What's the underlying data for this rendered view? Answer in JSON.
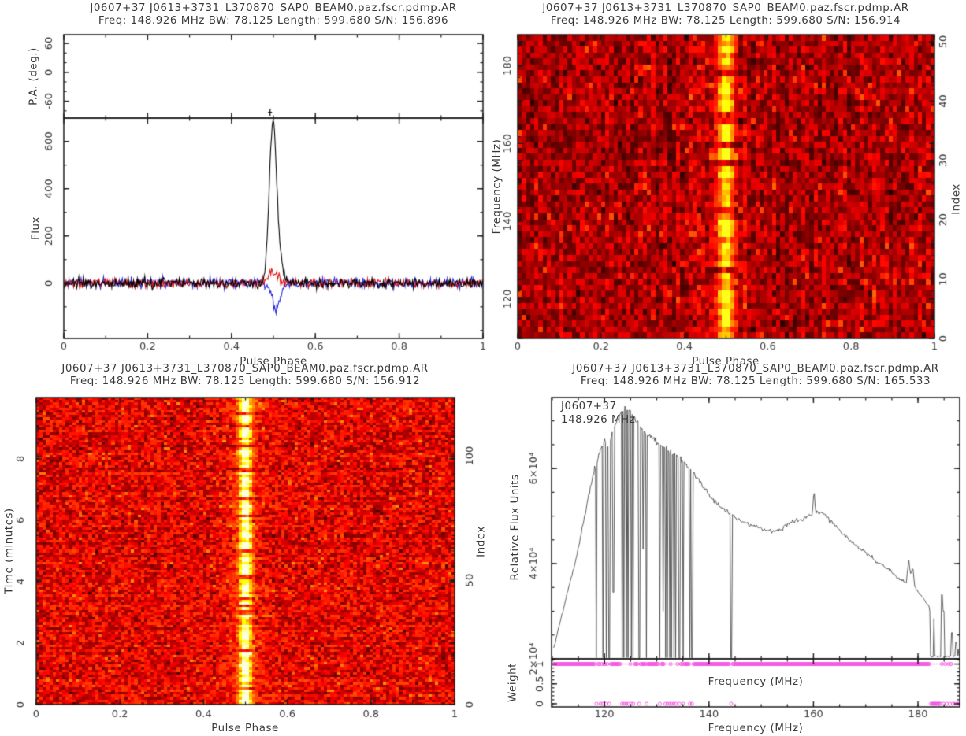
{
  "colors": {
    "background": "#ffffff",
    "frame": "#1c1c1c",
    "text": "#3a3a3a",
    "trace_total": "#000000",
    "trace_linear": "#dd1414",
    "trace_circular": "#2525dd",
    "spectrum_line": "#4a4a4a",
    "weight_markers": "#f44ae0",
    "heat_low": "#1a0000",
    "heat_mid": "#a81e00",
    "heat_high": "#ffd24a"
  },
  "panels": {
    "profile": {
      "title1": "J0607+37 J0613+3731_L370870_SAP0_BEAM0.paz.fscr.pdmp.AR",
      "title2": "Freq: 148.926 MHz BW: 78.125 Length: 599.680 S/N: 156.896",
      "pa_label": "P.A. (deg.)",
      "flux_label": "Flux",
      "xlabel": "Pulse Phase"
    },
    "freq_phase": {
      "title1": "J0607+37 J0613+3731_L370870_SAP0_BEAM0.paz.fscr.pdmp.AR",
      "title2": "Freq: 148.926 MHz BW: 78.125 Length: 599.680 S/N: 156.914",
      "ylabel": "Frequency (MHz)",
      "right_label": "Index",
      "xlabel": "Pulse Phase"
    },
    "time_phase": {
      "title1": "J0607+37 J0613+3731_L370870_SAP0_BEAM0.paz.fscr.pdmp.AR",
      "title2": "Freq: 148.926 MHz BW: 78.125 Length: 599.680 S/N: 156.912",
      "ylabel": "Time (minutes)",
      "right_label": "Index",
      "xlabel": "Pulse Phase"
    },
    "spectrum": {
      "title1": "J0607+37 J0613+3731_L370870_SAP0_BEAM0.paz.fscr.pdmp.AR",
      "title2": "Freq: 148.926 MHz BW: 78.125 Length: 599.680 S/N: 165.533",
      "ylabel": "Relative Flux Units",
      "weight_label": "Weight",
      "xlabel": "Frequency (MHz)",
      "xlabel_inner": "Frequency (MHz)",
      "annotation1": "J0607+37",
      "annotation2": "148.926 MHz"
    }
  },
  "chart_data": [
    {
      "type": "line",
      "panel": "pulse-profile",
      "xlabel": "Pulse Phase",
      "xlim": [
        0,
        1
      ],
      "x_ticks": {
        "values": [
          0,
          0.2,
          0.4,
          0.6,
          0.8,
          1
        ],
        "labels": [
          "0",
          "0.2",
          "0.4",
          "0.6",
          "0.8",
          "1"
        ],
        "minor_step": 0.1
      },
      "pa_axis": {
        "label": "P.A. (deg.)",
        "ylim": [
          -95,
          78
        ],
        "ticks": {
          "values": [
            -60,
            0,
            60
          ],
          "labels": [
            "-60",
            "0",
            "60"
          ],
          "minor_step": 20
        },
        "point": {
          "phase": 0.492,
          "pa": -83,
          "err": 7
        }
      },
      "flux_axis": {
        "label": "Flux",
        "ylim": [
          -234,
          699
        ],
        "ticks": {
          "values": [
            0,
            200,
            400,
            600
          ],
          "labels": [
            "0",
            "200",
            "400",
            "600"
          ],
          "minor_step": 100
        }
      },
      "n_bins": 560,
      "peak_phase": 0.5,
      "peak_flux": 640,
      "series": [
        {
          "name": "total-intensity",
          "color": "#000000",
          "noise_sigma": 11,
          "components": [
            {
              "phase": 0.4985,
              "amplitude": 640,
              "sigma": 0.0085
            },
            {
              "phase": 0.512,
              "amplitude": 90,
              "sigma": 0.012
            }
          ]
        },
        {
          "name": "linear-polarization",
          "color": "#dd1414",
          "noise_sigma": 9,
          "components": [
            {
              "phase": 0.5,
              "amplitude": 52,
              "sigma": 0.011
            }
          ]
        },
        {
          "name": "circular-polarization",
          "color": "#2525dd",
          "noise_sigma": 10,
          "components": [
            {
              "phase": 0.506,
              "amplitude": -112,
              "sigma": 0.0085
            }
          ]
        }
      ]
    },
    {
      "type": "heatmap",
      "panel": "phase-vs-frequency",
      "xlim": [
        0,
        1
      ],
      "ylim": [
        109.86,
        187.99
      ],
      "x_ticks": {
        "values": [
          0,
          0.2,
          0.4,
          0.6,
          0.8,
          1
        ],
        "labels": [
          "0",
          "0.2",
          "0.4",
          "0.6",
          "0.8",
          "1"
        ],
        "minor_step": 0.1
      },
      "y_ticks": {
        "values": [
          120,
          140,
          160,
          180
        ],
        "labels": [
          "120",
          "140",
          "160",
          "180"
        ],
        "minor_step": 5
      },
      "index_axis": {
        "label": "Index",
        "lim": [
          0,
          51.2
        ],
        "ticks": {
          "values": [
            0,
            10,
            20,
            30,
            40,
            50
          ],
          "labels": [
            "0",
            "10",
            "20",
            "30",
            "40",
            "50"
          ],
          "minor_step": 2
        }
      },
      "rows": 51,
      "cols": 100,
      "base_level": [
        0.11,
        0.31
      ],
      "stripe": {
        "phase": 0.5,
        "sigma_cells": 1.15,
        "halo_sigma": 4.0,
        "amp_range": [
          0.3,
          0.78
        ],
        "cap": 0.86
      },
      "seed": 11
    },
    {
      "type": "heatmap",
      "panel": "phase-vs-time",
      "xlim": [
        0,
        1
      ],
      "ylim": [
        0,
        9.995
      ],
      "x_ticks": {
        "values": [
          0,
          0.2,
          0.4,
          0.6,
          0.8,
          1
        ],
        "labels": [
          "0",
          "0.2",
          "0.4",
          "0.6",
          "0.8",
          "1"
        ],
        "minor_step": 0.1
      },
      "y_ticks": {
        "values": [
          0,
          2,
          4,
          6,
          8
        ],
        "labels": [
          "0",
          "2",
          "4",
          "6",
          "8"
        ],
        "minor_step": 0.5
      },
      "index_axis": {
        "label": "Index",
        "lim": [
          0,
          123.5
        ],
        "ticks": {
          "values": [
            0,
            50,
            100
          ],
          "labels": [
            "0",
            "50",
            "100"
          ],
          "minor_step": 10
        }
      },
      "rows": 123,
      "cols": 128,
      "base_level": [
        0.17,
        0.41
      ],
      "stripe": {
        "phase": 0.5,
        "sigma_cells": 1.25,
        "halo_sigma": 4.5,
        "amp_range": [
          0.35,
          1.0
        ],
        "cap": 1.0
      },
      "seed": 23
    },
    {
      "type": "line",
      "panel": "bandpass-spectrum",
      "xlabel": "Frequency (MHz)",
      "xlim": [
        109.86,
        187.99
      ],
      "x_ticks": {
        "values": [
          120,
          140,
          160,
          180
        ],
        "labels": [
          "120",
          "140",
          "160",
          "180"
        ],
        "minor_step": 5
      },
      "ylim": [
        20000,
        74900
      ],
      "y_ticks": {
        "values": [
          20000,
          40000,
          60000
        ],
        "labels": [
          "2×10⁴",
          "4×10⁴",
          "6×10⁴"
        ],
        "minor_step": 5000
      },
      "sample_step": 0.16,
      "noise": 260,
      "seed": 5,
      "baseline": 20250,
      "envelope": [
        [
          110.3,
          22300
        ],
        [
          111,
          25500
        ],
        [
          112,
          30000
        ],
        [
          113,
          34500
        ],
        [
          114,
          38500
        ],
        [
          115,
          43500
        ],
        [
          116,
          49000
        ],
        [
          117,
          54500
        ],
        [
          118,
          59500
        ],
        [
          119,
          63000
        ],
        [
          120,
          66000
        ],
        [
          120.7,
          64500
        ],
        [
          121.5,
          67500
        ],
        [
          122.3,
          69800
        ],
        [
          123.2,
          71500
        ],
        [
          124,
          72800
        ],
        [
          124.8,
          72200
        ],
        [
          125.6,
          71000
        ],
        [
          126.4,
          69500
        ],
        [
          127.2,
          68300
        ],
        [
          128,
          67400
        ],
        [
          129,
          66300
        ],
        [
          130,
          65400
        ],
        [
          131,
          64800
        ],
        [
          132,
          64100
        ],
        [
          133,
          63200
        ],
        [
          134,
          62300
        ],
        [
          135,
          61600
        ],
        [
          136,
          60300
        ],
        [
          137,
          59200
        ],
        [
          138,
          57700
        ],
        [
          139,
          56100
        ],
        [
          140,
          54600
        ],
        [
          141,
          53200
        ],
        [
          142,
          52100
        ],
        [
          143,
          51100
        ],
        [
          144,
          50400
        ],
        [
          145,
          49600
        ],
        [
          146,
          49000
        ],
        [
          147,
          48500
        ],
        [
          148,
          48100
        ],
        [
          149,
          47800
        ],
        [
          150,
          47400
        ],
        [
          151,
          47000
        ],
        [
          152,
          46800
        ],
        [
          153,
          47000
        ],
        [
          154,
          47400
        ],
        [
          155,
          48200
        ],
        [
          156,
          48800
        ],
        [
          157,
          49100
        ],
        [
          158,
          49400
        ],
        [
          159,
          49800
        ],
        [
          159.8,
          50300
        ],
        [
          160.1,
          55500
        ],
        [
          160.4,
          51200
        ],
        [
          161,
          50800
        ],
        [
          162,
          50300
        ],
        [
          163,
          49300
        ],
        [
          164,
          48300
        ],
        [
          165,
          47000
        ],
        [
          166,
          45900
        ],
        [
          167,
          44900
        ],
        [
          168,
          43900
        ],
        [
          169,
          43000
        ],
        [
          170,
          42400
        ],
        [
          171,
          41400
        ],
        [
          172,
          40500
        ],
        [
          173,
          39900
        ],
        [
          174,
          39000
        ],
        [
          175,
          38100
        ],
        [
          176,
          37100
        ],
        [
          177,
          36500
        ],
        [
          177.8,
          36000
        ],
        [
          178.2,
          41000
        ],
        [
          178.6,
          37500
        ],
        [
          179,
          39500
        ],
        [
          179.4,
          35200
        ],
        [
          180,
          34000
        ],
        [
          181,
          32800
        ],
        [
          182,
          31200
        ],
        [
          182.3,
          30000
        ]
      ],
      "rfi_dropouts": [
        118.45,
        119.65,
        120.35,
        120.9,
        123.35,
        123.75,
        124.15,
        124.55,
        125.15,
        125.5,
        126.65,
        128.05,
        130.6,
        131.65,
        132.05,
        132.45,
        132.85,
        133.25,
        133.65,
        134.35,
        135.05,
        136.35,
        136.75,
        144.25
      ],
      "partial_dropouts": [
        [
          121.7,
          34000
        ],
        [
          127.4,
          43000
        ],
        [
          131.2,
          30000
        ]
      ],
      "edge_region_start": 182.35,
      "edge_baseline": 20350,
      "edge_spikes": [
        [
          183.05,
          28500
        ],
        [
          184.55,
          33500
        ],
        [
          184.85,
          30000
        ],
        [
          186.5,
          25500
        ],
        [
          187.3,
          23500
        ],
        [
          187.7,
          22000
        ]
      ],
      "weight_panel": {
        "label": "Weight",
        "ylim": [
          -0.08,
          1.13
        ],
        "ticks": {
          "values": [
            0,
            0.5,
            1
          ],
          "labels": [
            "0",
            "0.5",
            "1"
          ],
          "minor_step": 0.1
        },
        "marker_step": 0.22,
        "one_gap_radius": 0.18,
        "zero_freqs": [
          118.45,
          119.25,
          119.65,
          120.35,
          120.9,
          123.35,
          123.75,
          124.15,
          124.55,
          125.15,
          125.5,
          126.65,
          128.05,
          130.6,
          131.65,
          132.05,
          132.45,
          132.85,
          133.25,
          133.65,
          134.35,
          135.05,
          136.35,
          136.75,
          144.25,
          182.5,
          182.7,
          182.9,
          183.1,
          183.3,
          183.5,
          183.7,
          183.9,
          184.1,
          184.3,
          184.9,
          185.5,
          186.1,
          186.7,
          187.1,
          187.5,
          187.8
        ]
      }
    }
  ]
}
